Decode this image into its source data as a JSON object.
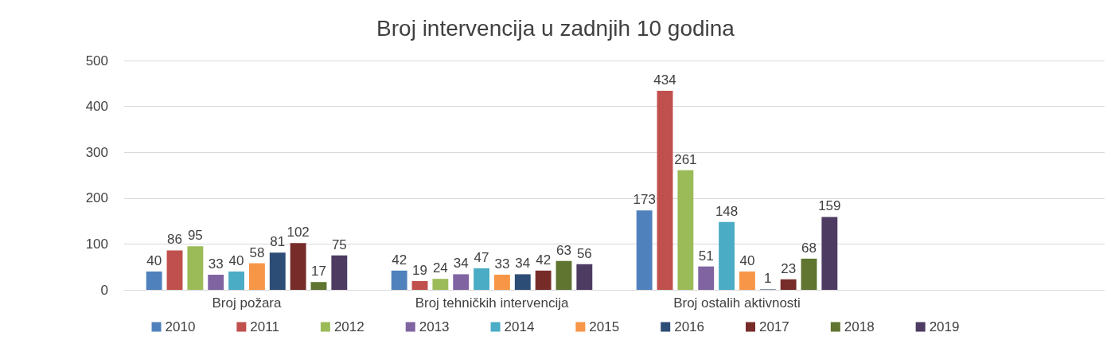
{
  "chart_data": {
    "type": "bar",
    "title": "Broj intervencija u zadnjih 10 godina",
    "categories": [
      "Broj požara",
      "Broj tehničkih intervencija",
      "Broj ostalih aktivnosti",
      null
    ],
    "series": [
      {
        "name": "2010",
        "color": "#4f81bd",
        "values": [
          40,
          42,
          173,
          null
        ]
      },
      {
        "name": "2011",
        "color": "#c0504d",
        "values": [
          86,
          19,
          434,
          null
        ]
      },
      {
        "name": "2012",
        "color": "#9bbb59",
        "values": [
          95,
          24,
          261,
          null
        ]
      },
      {
        "name": "2013",
        "color": "#8064a2",
        "values": [
          33,
          34,
          51,
          null
        ]
      },
      {
        "name": "2014",
        "color": "#4bacc6",
        "values": [
          40,
          47,
          148,
          null
        ]
      },
      {
        "name": "2015",
        "color": "#f79646",
        "values": [
          58,
          33,
          40,
          null
        ]
      },
      {
        "name": "2016",
        "color": "#2c4d75",
        "values": [
          81,
          34,
          1,
          null
        ]
      },
      {
        "name": "2017",
        "color": "#772c2a",
        "values": [
          102,
          42,
          23,
          null
        ]
      },
      {
        "name": "2018",
        "color": "#5f7530",
        "values": [
          17,
          63,
          68,
          null
        ]
      },
      {
        "name": "2019",
        "color": "#4d3b62",
        "values": [
          75,
          56,
          159,
          null
        ]
      }
    ],
    "ylim": [
      0,
      500
    ],
    "yticks": [
      0,
      100,
      200,
      300,
      400,
      500
    ],
    "grid": "y",
    "legend": "bottom",
    "data_labels": true
  }
}
